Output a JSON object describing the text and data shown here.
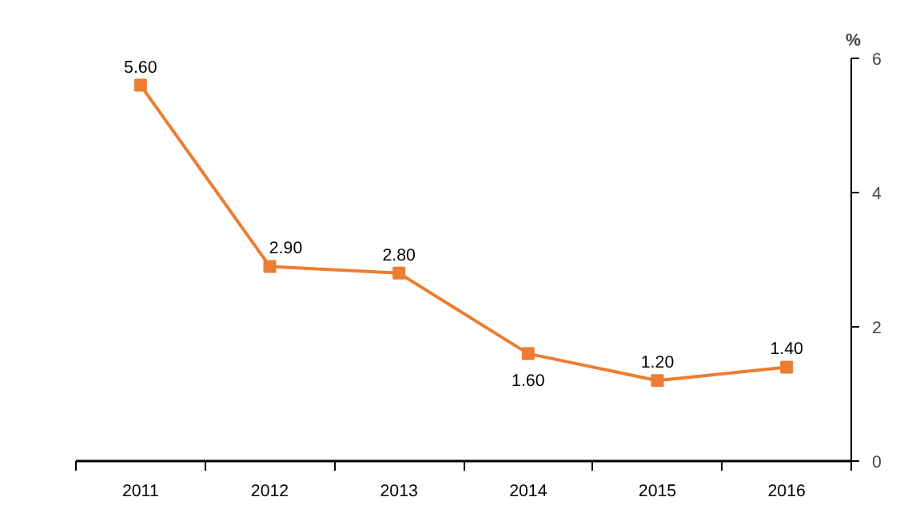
{
  "chart_data": {
    "type": "line",
    "ylabel": "%",
    "categories": [
      "2011",
      "2012",
      "2013",
      "2014",
      "2015",
      "2016"
    ],
    "series": [
      {
        "color": "#ed7d31",
        "values": [
          5.6,
          2.9,
          2.8,
          1.6,
          1.2,
          1.4
        ],
        "value_labels": [
          "5.60",
          "2.90",
          "2.80",
          "1.60",
          "1.20",
          "1.40"
        ]
      }
    ],
    "ylim": [
      0,
      6
    ],
    "yticks": [
      0,
      2,
      4,
      6
    ],
    "grid": false,
    "marker": "square",
    "line_style": "solid"
  }
}
